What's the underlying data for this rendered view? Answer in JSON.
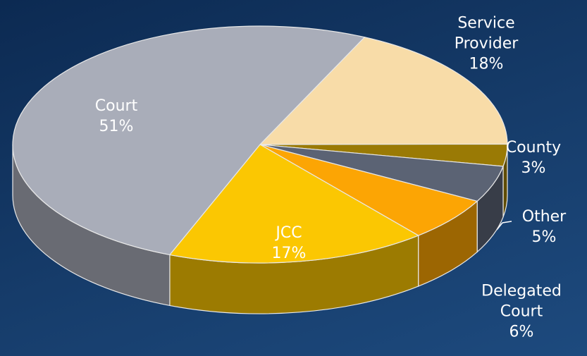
{
  "chart_data": {
    "type": "pie3d",
    "categories": [
      "Service Provider",
      "County",
      "Other",
      "Delegated Court",
      "JCC",
      "Court"
    ],
    "values": [
      18,
      3,
      5,
      6,
      17,
      51
    ],
    "value_labels": [
      "18%",
      "3%",
      "5%",
      "6%",
      "17%",
      "51%"
    ],
    "colors": [
      "#f8dca8",
      "#9a7a05",
      "#5b6374",
      "#fca504",
      "#fbc702",
      "#a9adb9"
    ]
  }
}
